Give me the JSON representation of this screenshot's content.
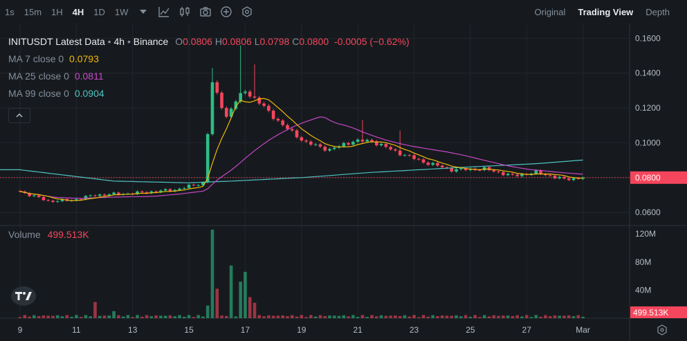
{
  "toolbar": {
    "timeframes": [
      "1s",
      "15m",
      "1H",
      "4H",
      "1D",
      "1W"
    ],
    "active_timeframe": "4H",
    "icons": [
      "chevron-down-icon",
      "indicators-icon",
      "candle-type-icon",
      "camera-icon",
      "plus-circle-icon",
      "settings-hex-icon"
    ],
    "views": [
      "Original",
      "Trading View",
      "Depth"
    ],
    "active_view": "Trading View"
  },
  "legend": {
    "symbol_title": "INITUSDT Latest Data",
    "interval_text": "4h",
    "exchange": "Binance",
    "o_label": "O",
    "o_value": "0.0806",
    "h_label": "H",
    "h_value": "0.0806",
    "l_label": "L",
    "l_value": "0.0798",
    "c_label": "C",
    "c_value": "0.0800",
    "change": "-0.0005 (−0.62%)",
    "ma7_label": "MA 7 close 0",
    "ma7_value": "0.0793",
    "ma25_label": "MA 25 close 0",
    "ma25_value": "0.0811",
    "ma99_label": "MA 99 close 0",
    "ma99_value": "0.0904"
  },
  "volume_legend": {
    "label": "Volume",
    "value": "499.513K"
  },
  "colors": {
    "up": "#2ebd85",
    "down": "#f6465d",
    "ma7": "#f0b90b",
    "ma25": "#c847c8",
    "ma99": "#4fc3c3",
    "grid": "#23272d"
  },
  "chart_data": {
    "type": "candlestick",
    "price_axis_ticks": [
      "0.1600",
      "0.1400",
      "0.1200",
      "0.1000",
      "0.0800",
      "0.0600"
    ],
    "price_range": [
      0.0525,
      0.1685
    ],
    "current_price_label": "0.0800",
    "volume_axis_ticks": [
      "120M",
      "80M",
      "40M"
    ],
    "volume_range": [
      0,
      130
    ],
    "current_volume_label": "499.513K",
    "x_tick_labels": [
      "9",
      "11",
      "13",
      "15",
      "17",
      "19",
      "21",
      "23",
      "25",
      "27",
      "Mar"
    ],
    "x_tick_bar_index": [
      0,
      12,
      24,
      36,
      48,
      60,
      72,
      84,
      96,
      108,
      120
    ],
    "anchors_close": [
      [
        0,
        0.072
      ],
      [
        6,
        0.0665
      ],
      [
        11,
        0.067
      ],
      [
        16,
        0.07
      ],
      [
        24,
        0.071
      ],
      [
        33,
        0.073
      ],
      [
        39,
        0.077
      ],
      [
        41,
        0.134
      ],
      [
        44,
        0.115
      ],
      [
        46,
        0.124
      ],
      [
        48,
        0.13
      ],
      [
        51,
        0.123
      ],
      [
        56,
        0.11
      ],
      [
        61,
        0.1
      ],
      [
        66,
        0.096
      ],
      [
        71,
        0.101
      ],
      [
        75,
        0.101
      ],
      [
        80,
        0.095
      ],
      [
        86,
        0.089
      ],
      [
        92,
        0.0845
      ],
      [
        99,
        0.085
      ],
      [
        105,
        0.081
      ],
      [
        110,
        0.083
      ],
      [
        116,
        0.079
      ],
      [
        120,
        0.08
      ]
    ],
    "volume_spikes_M": [
      [
        16,
        23
      ],
      [
        20,
        10
      ],
      [
        40,
        18
      ],
      [
        41,
        126
      ],
      [
        42,
        42
      ],
      [
        45,
        75
      ],
      [
        47,
        52
      ],
      [
        48,
        66
      ],
      [
        49,
        30
      ],
      [
        50,
        22
      ]
    ],
    "ma99_points": [
      [
        0,
        0.0845
      ],
      [
        20,
        0.078
      ],
      [
        36,
        0.077
      ],
      [
        45,
        0.078
      ],
      [
        60,
        0.08
      ],
      [
        75,
        0.083
      ],
      [
        95,
        0.086
      ],
      [
        110,
        0.088
      ],
      [
        122,
        0.0905
      ]
    ]
  }
}
